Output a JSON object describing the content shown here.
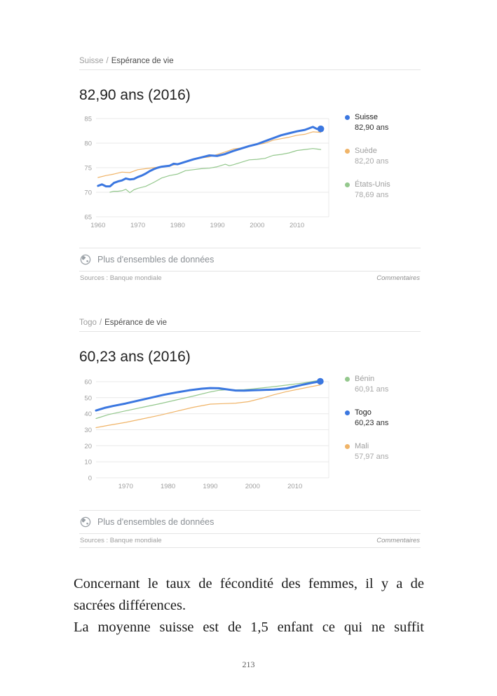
{
  "page": {
    "number": "213"
  },
  "body_text": {
    "lines": [
      "Concernant le taux de fécondité des femmes, il y a de",
      "sacrées différences.",
      "La moyenne suisse est de 1,5 enfant ce qui ne suffit"
    ]
  },
  "chart_data": [
    {
      "type": "line",
      "breadcrumb": {
        "root": "Suisse",
        "sep": "/",
        "leaf": "Espérance de vie"
      },
      "title": "82,90 ans (2016)",
      "xlabel": "",
      "ylabel": "",
      "ylim": [
        65,
        85
      ],
      "yticks": [
        65,
        70,
        75,
        80,
        85
      ],
      "xlim": [
        1959.5,
        2018
      ],
      "xticks": [
        1960,
        1970,
        1980,
        1990,
        2000,
        2010
      ],
      "grid": "horizontal",
      "legend_position": "right",
      "series": [
        {
          "name": "Suisse",
          "value_label": "82,90 ans",
          "color": "#3b77e0",
          "emphasized": true,
          "line_width": 3,
          "end_dot": true,
          "x": [
            1960,
            1961,
            1962,
            1963,
            1964,
            1965,
            1966,
            1967,
            1968,
            1969,
            1970,
            1971,
            1972,
            1973,
            1974,
            1975,
            1976,
            1977,
            1978,
            1979,
            1980,
            1982,
            1984,
            1986,
            1988,
            1990,
            1991,
            1992,
            1994,
            1996,
            1998,
            2000,
            2002,
            2004,
            2006,
            2008,
            2010,
            2012,
            2014,
            2015,
            2016
          ],
          "y": [
            71.3,
            71.6,
            71.2,
            71.2,
            71.9,
            72.2,
            72.4,
            72.8,
            72.6,
            72.7,
            73.1,
            73.4,
            73.8,
            74.3,
            74.7,
            75.0,
            75.2,
            75.3,
            75.4,
            75.8,
            75.7,
            76.2,
            76.7,
            77.1,
            77.5,
            77.4,
            77.6,
            77.8,
            78.4,
            78.9,
            79.4,
            79.8,
            80.4,
            81.0,
            81.6,
            82.0,
            82.4,
            82.7,
            83.3,
            82.9,
            82.9
          ]
        },
        {
          "name": "Suède",
          "value_label": "82,20 ans",
          "color": "#f0b468",
          "emphasized": false,
          "line_width": 1.2,
          "end_dot": false,
          "x": [
            1960,
            1962,
            1964,
            1966,
            1968,
            1970,
            1972,
            1974,
            1976,
            1978,
            1980,
            1982,
            1984,
            1986,
            1988,
            1990,
            1992,
            1994,
            1996,
            1998,
            2000,
            2002,
            2004,
            2006,
            2008,
            2010,
            2012,
            2014,
            2016
          ],
          "y": [
            73.0,
            73.4,
            73.7,
            74.1,
            74.0,
            74.6,
            74.8,
            75.0,
            75.2,
            75.4,
            75.7,
            76.3,
            76.7,
            77.0,
            77.2,
            77.7,
            78.2,
            78.8,
            79.0,
            79.4,
            79.7,
            80.0,
            80.6,
            80.9,
            81.2,
            81.6,
            81.8,
            82.3,
            82.2
          ]
        },
        {
          "name": "États-Unis",
          "value_label": "78,69 ans",
          "color": "#94c88d",
          "emphasized": false,
          "line_width": 1.2,
          "end_dot": false,
          "x": [
            1963,
            1964,
            1965,
            1966,
            1967,
            1968,
            1969,
            1970,
            1972,
            1974,
            1976,
            1978,
            1980,
            1982,
            1984,
            1986,
            1988,
            1990,
            1992,
            1993,
            1994,
            1996,
            1998,
            2000,
            2002,
            2004,
            2006,
            2008,
            2010,
            2012,
            2014,
            2015,
            2016
          ],
          "y": [
            70.0,
            70.2,
            70.2,
            70.3,
            70.6,
            69.9,
            70.5,
            70.8,
            71.2,
            72.0,
            72.9,
            73.4,
            73.7,
            74.4,
            74.6,
            74.8,
            74.9,
            75.2,
            75.7,
            75.4,
            75.6,
            76.1,
            76.6,
            76.7,
            76.9,
            77.5,
            77.7,
            78.0,
            78.5,
            78.7,
            78.9,
            78.8,
            78.7
          ]
        }
      ],
      "footer": {
        "more": "Plus d'ensembles de données",
        "sources": "Sources : Banque mondiale",
        "comments": "Commentaires"
      }
    },
    {
      "type": "line",
      "breadcrumb": {
        "root": "Togo",
        "sep": "/",
        "leaf": "Espérance de vie"
      },
      "title": "60,23 ans (2016)",
      "xlabel": "",
      "ylabel": "",
      "ylim": [
        0,
        60
      ],
      "yticks": [
        0,
        10,
        20,
        30,
        40,
        50,
        60
      ],
      "xlim": [
        1963,
        2018
      ],
      "xticks": [
        1970,
        1980,
        1990,
        2000,
        2010
      ],
      "grid": "horizontal",
      "legend_position": "right",
      "series": [
        {
          "name": "Bénin",
          "value_label": "60,91 ans",
          "color": "#94c88d",
          "emphasized": false,
          "line_width": 1.2,
          "end_dot": false,
          "x": [
            1963,
            1966,
            1970,
            1974,
            1978,
            1982,
            1986,
            1990,
            1992,
            1994,
            1996,
            1998,
            2000,
            2003,
            2006,
            2009,
            2012,
            2016
          ],
          "y": [
            37.0,
            39.5,
            41.8,
            44.0,
            46.2,
            48.6,
            51.0,
            53.6,
            54.6,
            55.0,
            54.9,
            55.0,
            55.5,
            56.3,
            57.2,
            58.2,
            59.2,
            60.9
          ]
        },
        {
          "name": "Togo",
          "value_label": "60,23 ans",
          "color": "#3b77e0",
          "emphasized": true,
          "line_width": 3,
          "end_dot": true,
          "x": [
            1963,
            1965,
            1967,
            1970,
            1973,
            1976,
            1979,
            1982,
            1985,
            1988,
            1990,
            1992,
            1994,
            1996,
            1998,
            2000,
            2002,
            2005,
            2008,
            2010,
            2012,
            2014,
            2016
          ],
          "y": [
            42.0,
            43.6,
            44.8,
            46.4,
            48.2,
            50.0,
            51.8,
            53.3,
            54.6,
            55.6,
            56.0,
            55.9,
            55.2,
            54.5,
            54.4,
            54.6,
            54.8,
            55.1,
            55.8,
            57.0,
            58.2,
            59.3,
            60.23
          ]
        },
        {
          "name": "Mali",
          "value_label": "57,97 ans",
          "color": "#f0b468",
          "emphasized": false,
          "line_width": 1.2,
          "end_dot": false,
          "x": [
            1963,
            1966,
            1970,
            1974,
            1978,
            1982,
            1986,
            1990,
            1993,
            1996,
            1999,
            2002,
            2005,
            2008,
            2011,
            2014,
            2016
          ],
          "y": [
            31.3,
            32.8,
            34.6,
            36.8,
            39.0,
            41.5,
            44.0,
            46.0,
            46.3,
            46.6,
            47.5,
            49.5,
            51.8,
            53.8,
            55.4,
            57.0,
            57.97
          ]
        }
      ],
      "footer": {
        "more": "Plus d'ensembles de données",
        "sources": "Sources : Banque mondiale",
        "comments": "Commentaires"
      }
    }
  ]
}
